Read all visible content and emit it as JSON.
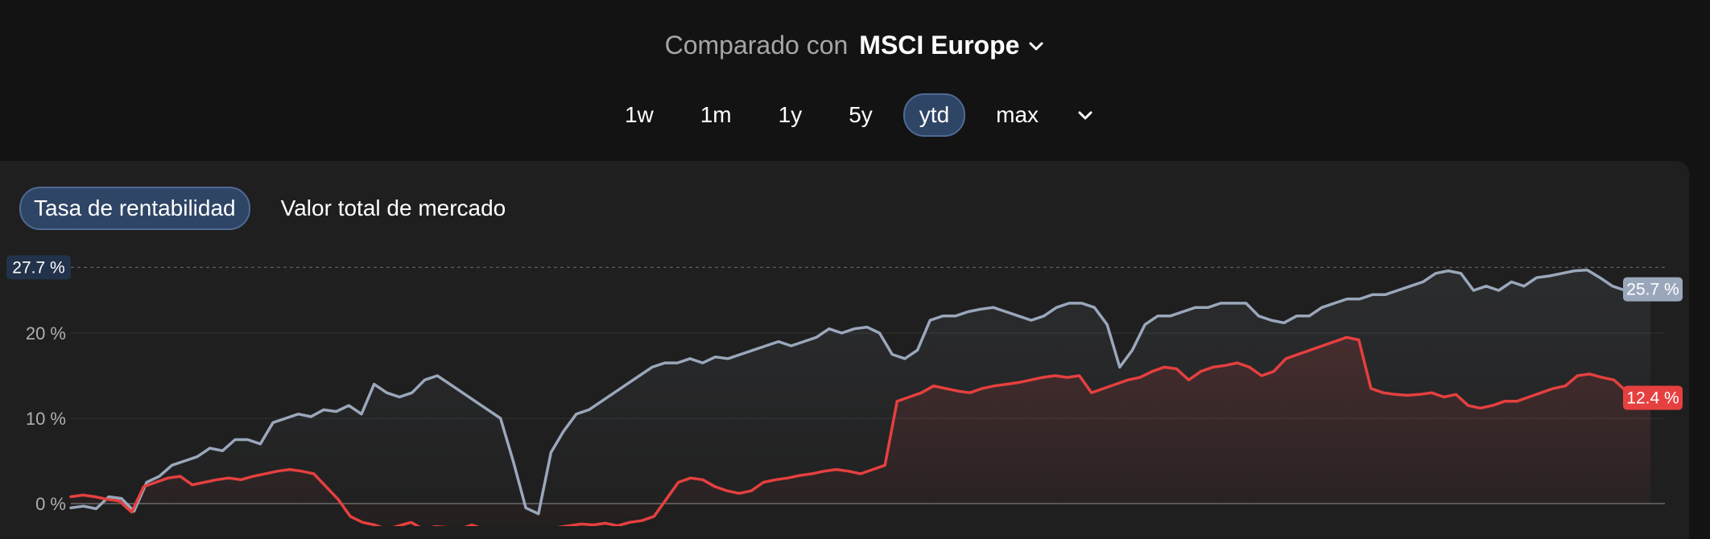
{
  "compare": {
    "label": "Comparado con",
    "value": "MSCI Europe"
  },
  "periods": [
    "1w",
    "1m",
    "1y",
    "5y",
    "ytd",
    "max"
  ],
  "active_period": "ytd",
  "tabs": [
    "Tasa de rentabilidad",
    "Valor total de mercado"
  ],
  "active_tab": "Tasa de rentabilidad",
  "colors": {
    "background": "#131313",
    "panel": "#1f1f1f",
    "accent_pill": "#2f4566",
    "msci": "#9aa7bb",
    "portfolio": "#e5403f"
  },
  "chart_data": {
    "type": "line",
    "y_ticks": [
      {
        "value": 0,
        "label": "0 %"
      },
      {
        "value": 10,
        "label": "10 %"
      },
      {
        "value": 20,
        "label": "20 %"
      }
    ],
    "max_marker": {
      "value": 27.7,
      "label": "27.7 %"
    },
    "ylim_visible": [
      -2.7,
      30
    ],
    "series": [
      {
        "color": "#9aa7bb",
        "end_label": "25.7 %",
        "values": [
          -0.5,
          -0.3,
          -0.6,
          0.8,
          0.6,
          -0.9,
          2.5,
          3.2,
          4.5,
          5,
          5.5,
          6.5,
          6.2,
          7.5,
          7.5,
          7,
          9.5,
          10,
          10.5,
          10.2,
          11,
          10.8,
          11.5,
          10.5,
          14,
          13,
          12.5,
          13,
          14.5,
          15,
          14,
          13,
          12,
          11,
          10,
          5,
          -0.5,
          -1.2,
          6,
          8.5,
          10.5,
          11,
          12,
          13,
          14,
          15,
          16,
          16.5,
          16.5,
          17,
          16.5,
          17.2,
          17,
          17.5,
          18,
          18.5,
          19,
          18.5,
          19,
          19.5,
          20.5,
          20,
          20.5,
          20.7,
          20,
          17.5,
          17,
          18,
          21.5,
          22,
          22,
          22.5,
          22.8,
          23,
          22.5,
          22,
          21.5,
          22,
          23,
          23.5,
          23.5,
          23,
          21,
          16,
          18,
          21,
          22,
          22,
          22.5,
          23,
          23,
          23.5,
          23.5,
          23.5,
          22,
          21.5,
          21.2,
          22,
          22,
          23,
          23.5,
          24,
          24,
          24.5,
          24.5,
          25,
          25.5,
          26,
          27,
          27.3,
          27,
          25,
          25.5,
          25,
          26,
          25.5,
          26.5,
          26.7,
          27,
          27.3,
          27.4,
          26.5,
          25.5,
          25,
          24.8,
          25.7
        ]
      },
      {
        "color": "#e5403f",
        "end_label": "12.4 %",
        "values": [
          0.8,
          1,
          0.8,
          0.5,
          0.3,
          -1,
          2,
          2.5,
          3,
          3.2,
          2.2,
          2.5,
          2.8,
          3,
          2.8,
          3.2,
          3.5,
          3.8,
          4,
          3.8,
          3.5,
          2,
          0.5,
          -1.5,
          -2.2,
          -2.5,
          -3,
          -2.6,
          -2.2,
          -3,
          -2.7,
          -2.8,
          -3,
          -2.5,
          -3,
          -3.2,
          -3.5,
          -3.5,
          -3.3,
          -3,
          -2.8,
          -2.6,
          -2.4,
          -2.5,
          -2.3,
          -2.6,
          -2.2,
          -2,
          -1.5,
          0.5,
          2.5,
          3,
          2.8,
          2,
          1.5,
          1.2,
          1.5,
          2.5,
          2.8,
          3,
          3.3,
          3.5,
          3.8,
          4,
          3.8,
          3.5,
          4,
          4.5,
          12,
          12.5,
          13,
          13.8,
          13.5,
          13.2,
          13,
          13.5,
          13.8,
          14,
          14.2,
          14.5,
          14.8,
          15,
          14.8,
          15,
          13,
          13.5,
          14,
          14.5,
          14.8,
          15.5,
          16,
          15.8,
          14.5,
          15.5,
          16,
          16.2,
          16.5,
          16,
          15,
          15.5,
          17,
          17.5,
          18,
          18.5,
          19,
          19.5,
          19.2,
          13.5,
          13,
          12.8,
          12.7,
          12.8,
          13,
          12.5,
          12.8,
          11.5,
          11.2,
          11.5,
          12,
          12,
          12.5,
          13,
          13.5,
          13.8,
          15,
          15.2,
          14.8,
          14.5,
          13.2,
          12.8,
          12.4
        ]
      }
    ]
  }
}
